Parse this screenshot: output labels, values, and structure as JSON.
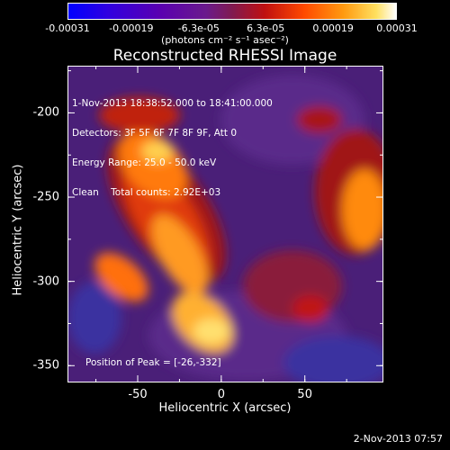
{
  "colorbar": {
    "ticks": [
      "-0.00031",
      "-0.00019",
      "-6.3e-05",
      "6.3e-05",
      "0.00019",
      "0.00031"
    ],
    "tick_values": [
      -0.00031,
      -0.00019,
      -6.3e-05,
      6.3e-05,
      0.00019,
      0.00031
    ],
    "range": [
      -0.00031,
      0.00031
    ],
    "units": "(photons cm⁻² s⁻¹ asec⁻²)",
    "colors": [
      "#0000ff",
      "#5a00c0",
      "#7a2090",
      "#c01010",
      "#ff6a00",
      "#ffe060",
      "#ffffff"
    ]
  },
  "title": "Reconstructed RHESSI Image",
  "annotation": {
    "line1": "1-Nov-2013 18:38:52.000 to 18:41:00.000",
    "line2": "Detectors: 3F 5F 6F 7F 8F 9F, Att 0",
    "line3": "Energy Range: 25.0 - 50.0 keV",
    "line4": "Clean    Total counts: 2.92E+03"
  },
  "peak_label": "Position of Peak = [-26,-332]",
  "axes": {
    "xlabel": "Heliocentric X (arcsec)",
    "ylabel": "Heliocentric Y (arcsec)",
    "xticks": [
      "-50",
      "0",
      "50"
    ],
    "xtick_values": [
      -50,
      0,
      50
    ],
    "yticks": [
      "-200",
      "-250",
      "-300",
      "-350"
    ],
    "ytick_values": [
      -200,
      -250,
      -300,
      -350
    ],
    "xlim": [
      -92,
      97
    ],
    "ylim": [
      -360,
      -172
    ]
  },
  "footer": "2-Nov-2013 07:57"
}
